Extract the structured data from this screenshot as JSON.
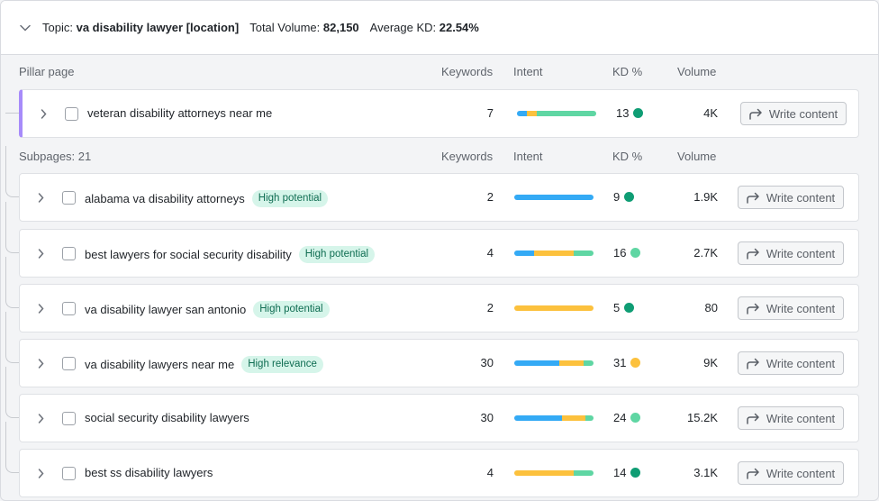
{
  "topic": {
    "prefix": "Topic:",
    "name": "va disability lawyer [location]",
    "volume_label": "Total Volume:",
    "volume": "82,150",
    "kd_label": "Average KD:",
    "kd": "22.54%"
  },
  "pillar_header": {
    "title": "Pillar page",
    "keywords": "Keywords",
    "intent": "Intent",
    "kd": "KD %",
    "volume": "Volume"
  },
  "subpages_header": {
    "title": "Subpages: 21",
    "keywords": "Keywords",
    "intent": "Intent",
    "kd": "KD %",
    "volume": "Volume"
  },
  "write_label": "Write content",
  "colors": {
    "informational": "#34aaf5",
    "commercial": "#fcc13d",
    "transactional": "#5fd6a3",
    "kd_dark_green": "#0f9d74",
    "kd_light_green": "#5fd6a3",
    "kd_yellow": "#fcc13d",
    "pillar_accent": "#a78bfa"
  },
  "pillar": {
    "keyword": "veteran disability attorneys near me",
    "badge": "",
    "keywords": "7",
    "intent": [
      0.12,
      0.13,
      0.75
    ],
    "kd": "13",
    "kd_color": "#0f9d74",
    "volume": "4K"
  },
  "subpages": [
    {
      "keyword": "alabama va disability attorneys",
      "badge": "High potential",
      "keywords": "2",
      "intent": [
        1.0,
        0,
        0
      ],
      "kd": "9",
      "kd_color": "#0f9d74",
      "volume": "1.9K"
    },
    {
      "keyword": "best lawyers for social security disability",
      "badge": "High potential",
      "keywords": "4",
      "intent": [
        0.25,
        0.5,
        0.25
      ],
      "kd": "16",
      "kd_color": "#5fd6a3",
      "volume": "2.7K"
    },
    {
      "keyword": "va disability lawyer san antonio",
      "badge": "High potential",
      "keywords": "2",
      "intent": [
        0,
        1.0,
        0
      ],
      "kd": "5",
      "kd_color": "#0f9d74",
      "volume": "80"
    },
    {
      "keyword": "va disability lawyers near me",
      "badge": "High relevance",
      "keywords": "30",
      "intent": [
        0.57,
        0.3,
        0.13
      ],
      "kd": "31",
      "kd_color": "#fcc13d",
      "volume": "9K"
    },
    {
      "keyword": "social security disability lawyers",
      "badge": "",
      "keywords": "30",
      "intent": [
        0.6,
        0.3,
        0.1
      ],
      "kd": "24",
      "kd_color": "#5fd6a3",
      "volume": "15.2K"
    },
    {
      "keyword": "best ss disability lawyers",
      "badge": "",
      "keywords": "4",
      "intent": [
        0,
        0.75,
        0.25
      ],
      "kd": "14",
      "kd_color": "#0f9d74",
      "volume": "3.1K"
    }
  ]
}
